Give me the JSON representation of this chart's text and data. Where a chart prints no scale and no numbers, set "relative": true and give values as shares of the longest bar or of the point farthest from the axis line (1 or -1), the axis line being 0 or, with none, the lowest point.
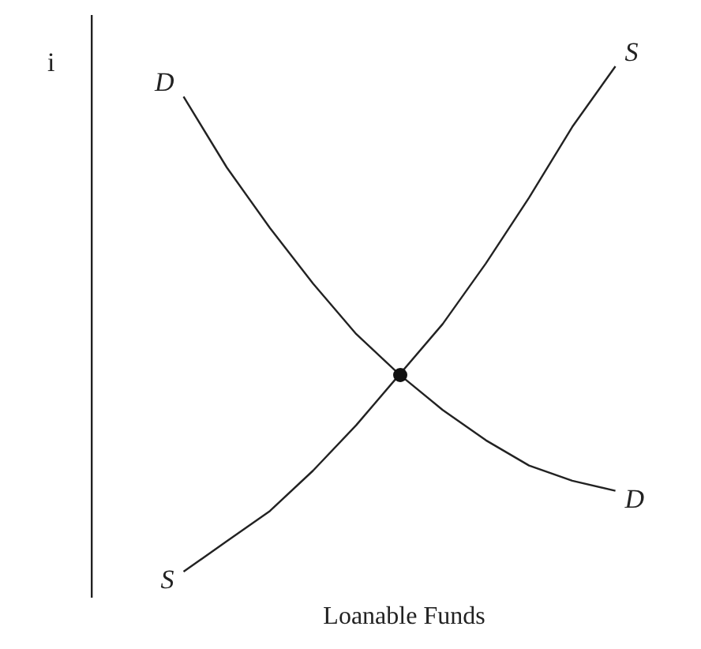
{
  "chart_data": {
    "type": "line",
    "relative": true,
    "xlabel": "Loanable Funds",
    "ylabel": "i",
    "categories": [
      null,
      null,
      null,
      null,
      null,
      null,
      null,
      null,
      null,
      null,
      null
    ],
    "marker": "none",
    "legend": false,
    "grid": false,
    "series": [
      {
        "name": "D",
        "color": "#222222",
        "values": [
          0.94,
          0.8,
          0.68,
          0.57,
          0.47,
          0.39,
          0.32,
          0.26,
          0.21,
          0.18,
          0.16
        ]
      },
      {
        "name": "S",
        "color": "#222222",
        "values": [
          0,
          0.06,
          0.12,
          0.2,
          0.29,
          0.39,
          0.49,
          0.61,
          0.74,
          0.88,
          1
        ]
      }
    ]
  }
}
